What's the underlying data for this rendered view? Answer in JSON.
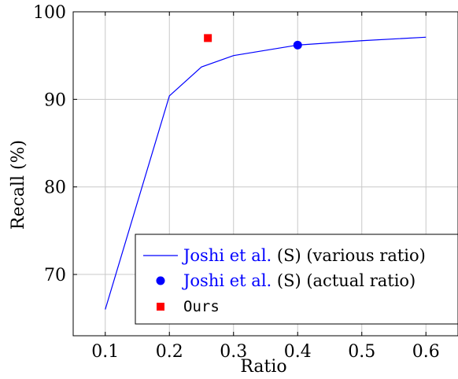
{
  "chart_data": {
    "type": "line",
    "xlabel": "Ratio",
    "ylabel": "Recall (%)",
    "xlim": [
      0.05,
      0.65
    ],
    "ylim": [
      63,
      100
    ],
    "x_ticks": [
      "0.1",
      "0.2",
      "0.3",
      "0.4",
      "0.5",
      "0.6"
    ],
    "y_ticks": [
      "70",
      "80",
      "90",
      "100"
    ],
    "grid": true,
    "legend_position": "bottom-right",
    "series": [
      {
        "name": "Joshi et al. (S) (various ratio)",
        "name_parts": {
          "link": "Joshi et al.",
          "rest": " (S) (various ratio)"
        },
        "type": "line",
        "color": "#0000ff",
        "x": [
          0.1,
          0.2,
          0.25,
          0.3,
          0.4,
          0.5,
          0.6
        ],
        "y": [
          66.0,
          90.4,
          93.7,
          95.0,
          96.2,
          96.7,
          97.1
        ]
      },
      {
        "name": "Joshi et al. (S) (actual ratio)",
        "name_parts": {
          "link": "Joshi et al.",
          "rest": " (S) (actual ratio)"
        },
        "type": "scatter",
        "marker": "circle",
        "color": "#0000ff",
        "x": [
          0.4
        ],
        "y": [
          96.2
        ]
      },
      {
        "name": "Ours",
        "type": "scatter",
        "marker": "square",
        "color": "#ff0000",
        "x": [
          0.26
        ],
        "y": [
          97.0
        ]
      }
    ]
  }
}
